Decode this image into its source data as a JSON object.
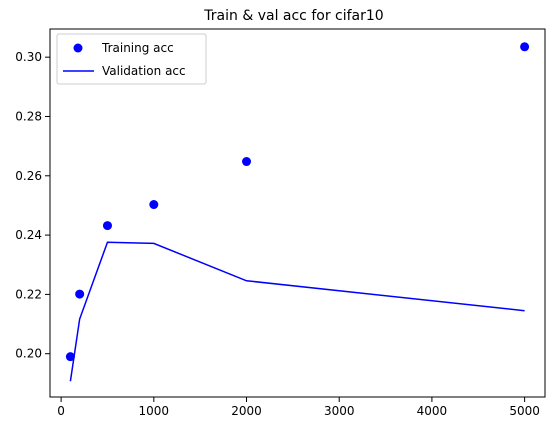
{
  "chart_data": {
    "type": "line",
    "title": "Train & val acc for cifar10",
    "xlabel": "",
    "ylabel": "",
    "xlim": [
      -120,
      5220
    ],
    "ylim": [
      0.1854,
      0.3095
    ],
    "grid": false,
    "legend_position": "top-left",
    "x_ticks": [
      0,
      1000,
      2000,
      3000,
      4000,
      5000
    ],
    "y_ticks": [
      0.2,
      0.22,
      0.24,
      0.26,
      0.28,
      0.3
    ],
    "x_tick_labels": [
      "0",
      "1000",
      "2000",
      "3000",
      "4000",
      "5000"
    ],
    "y_tick_labels": [
      "0.20",
      "0.22",
      "0.24",
      "0.26",
      "0.28",
      "0.30"
    ],
    "series": [
      {
        "name": "Training acc",
        "kind": "scatter",
        "color": "#0000ff",
        "x": [
          100,
          200,
          500,
          1000,
          2000,
          5000
        ],
        "y": [
          0.199,
          0.2201,
          0.2432,
          0.2503,
          0.2648,
          0.3035
        ]
      },
      {
        "name": "Validation acc",
        "kind": "line",
        "color": "#0000ff",
        "x": [
          100,
          200,
          500,
          1000,
          2000,
          5000
        ],
        "y": [
          0.1907,
          0.2117,
          0.2376,
          0.2372,
          0.2246,
          0.2145
        ]
      }
    ]
  }
}
